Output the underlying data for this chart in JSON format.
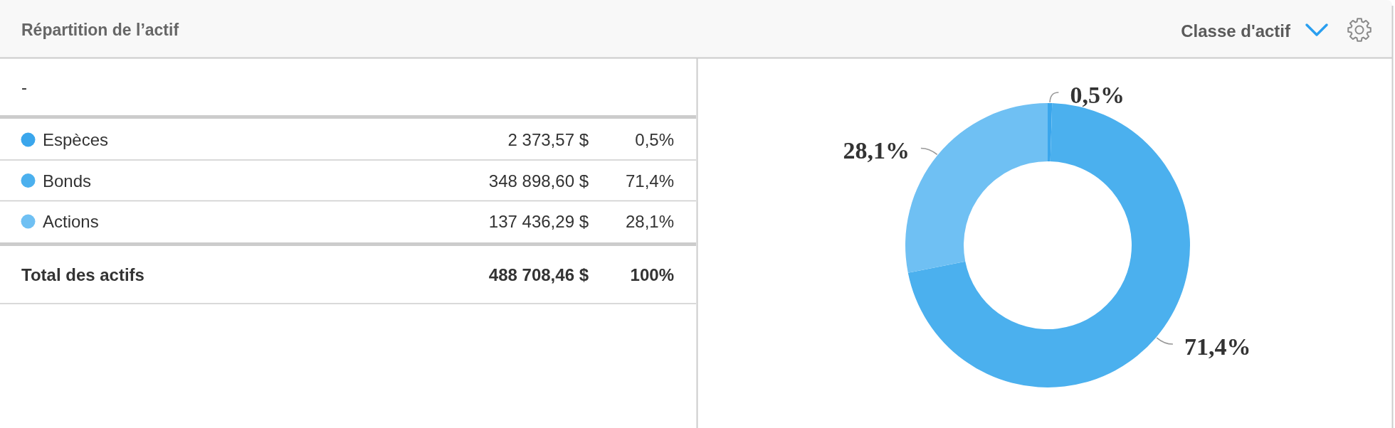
{
  "chart_data": {
    "type": "donut",
    "title": "Répartition de l’actif",
    "subtitle": "-",
    "categories": [
      "Espèces",
      "Bonds",
      "Actions"
    ],
    "values": [
      0.5,
      71.4,
      28.1
    ],
    "colors": [
      "#3aa6ec",
      "#4bb0ee",
      "#6fc0f3"
    ],
    "value_labels": [
      "0,5%",
      "71,4%",
      "28,1%"
    ],
    "legend": "left",
    "annotations": [
      "Classe d'actif",
      "2 373,57 $",
      "348 898,60 $",
      "137 436,29 $",
      "Total des actifs",
      "488 708,46 $",
      "100%"
    ]
  }
}
